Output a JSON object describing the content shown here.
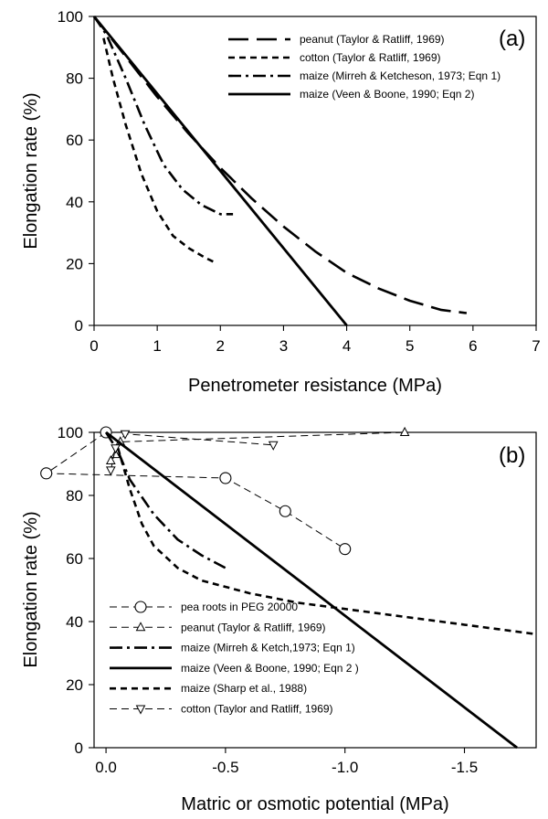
{
  "chart_data": [
    {
      "type": "line",
      "panel_label": "(a)",
      "xlabel": "Penetrometer resistance (MPa)",
      "ylabel": "Elongation rate (%)",
      "xlim": [
        0,
        7
      ],
      "ylim": [
        0,
        100
      ],
      "xticks": [
        "0",
        "1",
        "2",
        "3",
        "4",
        "5",
        "6",
        "7"
      ],
      "yticks": [
        "0",
        "20",
        "40",
        "60",
        "80",
        "100"
      ],
      "grid": false,
      "legend_position": "top-right",
      "series": [
        {
          "name": "peanut (Taylor & Ratliff, 1969)",
          "style": "long-dash",
          "x": [
            0,
            0.5,
            1,
            1.5,
            2,
            2.5,
            3,
            3.5,
            4,
            4.5,
            5,
            5.5,
            5.9
          ],
          "y": [
            100,
            87,
            74,
            62,
            51,
            41,
            32,
            24,
            17,
            12,
            8,
            5,
            4
          ]
        },
        {
          "name": "cotton (Taylor & Ratliff, 1969)",
          "style": "short-dash",
          "x": [
            0.15,
            0.3,
            0.5,
            0.75,
            1.0,
            1.25,
            1.5,
            1.75,
            1.95
          ],
          "y": [
            93,
            80,
            65,
            49,
            37,
            29,
            25,
            22,
            20
          ]
        },
        {
          "name": "maize (Mirreh & Ketcheson, 1973; Eqn 1)",
          "style": "dash-dot",
          "x": [
            0,
            0.2,
            0.5,
            0.8,
            1.1,
            1.4,
            1.7,
            2.0,
            2.2
          ],
          "y": [
            100,
            94,
            80,
            65,
            52,
            44,
            39,
            36,
            36
          ]
        },
        {
          "name": "maize (Veen & Boone, 1990; Eqn 2)",
          "style": "solid",
          "x": [
            0,
            4
          ],
          "y": [
            100,
            0
          ]
        }
      ]
    },
    {
      "type": "line",
      "panel_label": "(b)",
      "xlabel": "Matric or osmotic potential (MPa)",
      "ylabel": "Elongation rate (%)",
      "xlim": [
        0.05,
        -1.8
      ],
      "ylim": [
        0,
        100
      ],
      "xticks": [
        "0.0",
        "-0.5",
        "-1.0",
        "-1.5"
      ],
      "yticks": [
        "0",
        "20",
        "40",
        "60",
        "80",
        "100"
      ],
      "grid": false,
      "legend_position": "bottom-left",
      "series": [
        {
          "name": "pea roots in PEG 20000",
          "style": "thin-dash",
          "marker": "circle",
          "x": [
            0,
            0.25,
            -0.5,
            -0.75,
            -1.0
          ],
          "y": [
            100,
            87,
            85.5,
            75,
            63
          ]
        },
        {
          "name": "peanut (Taylor & Ratliff, 1969)",
          "style": "thin-dash",
          "marker": "triangle-up",
          "x": [
            -0.02,
            -0.04,
            -0.06,
            -1.25
          ],
          "y": [
            91,
            93,
            97,
            100
          ]
        },
        {
          "name": "maize (Mirreh & Ketch,1973; Eqn 1)",
          "style": "dash-dot",
          "x": [
            0,
            -0.05,
            -0.1,
            -0.2,
            -0.3,
            -0.4,
            -0.5
          ],
          "y": [
            100,
            94,
            85,
            74,
            66,
            61,
            57
          ]
        },
        {
          "name": "maize (Veen & Boone,  1990; Eqn 2 )",
          "style": "solid",
          "x": [
            0,
            -1.72
          ],
          "y": [
            100,
            0
          ]
        },
        {
          "name": "maize (Sharp et al., 1988)",
          "style": "short-dash",
          "x": [
            -0.05,
            -0.1,
            -0.15,
            -0.2,
            -0.3,
            -0.4,
            -0.5,
            -0.6,
            -0.8,
            -1.0,
            -1.2,
            -1.4,
            -1.6,
            -1.8
          ],
          "y": [
            95,
            82,
            71,
            64,
            57,
            53,
            51,
            49,
            46,
            44,
            42,
            40,
            38,
            36
          ]
        },
        {
          "name": "cotton (Taylor and Ratliff, 1969)",
          "style": "thin-dash",
          "marker": "triangle-down",
          "x": [
            -0.02,
            -0.04,
            -0.08,
            -0.7
          ],
          "y": [
            88,
            95,
            99.5,
            96
          ]
        }
      ]
    }
  ]
}
